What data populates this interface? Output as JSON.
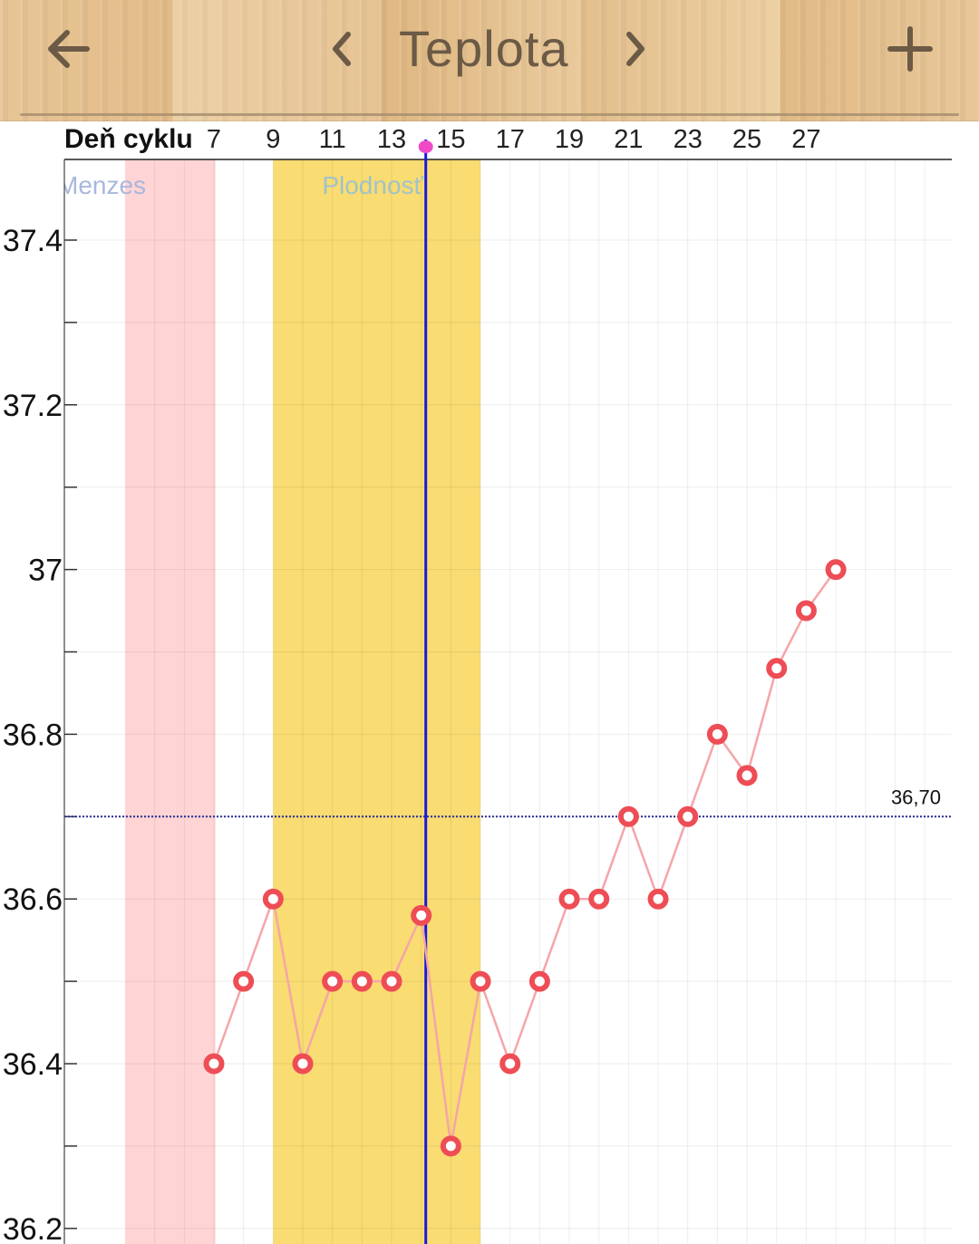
{
  "header": {
    "title": "Teplota",
    "back_icon": "arrow-left-icon",
    "prev_icon": "chevron-left-icon",
    "next_icon": "chevron-right-icon",
    "add_icon": "plus-icon",
    "icon_color": "#6b5a45"
  },
  "chart_data": {
    "type": "line",
    "xlabel": "Deň cyklu",
    "x_ticks": [
      7,
      9,
      11,
      13,
      15,
      17,
      19,
      21,
      23,
      25,
      27
    ],
    "y_ticks": [
      {
        "value": 37.4,
        "label": "37.4"
      },
      {
        "value": 37.2,
        "label": "37.2"
      },
      {
        "value": 37.0,
        "label": "37"
      },
      {
        "value": 36.8,
        "label": "36.8"
      },
      {
        "value": 36.6,
        "label": "36.6"
      },
      {
        "value": 36.4,
        "label": "36.4"
      },
      {
        "value": 36.2,
        "label": "36.2"
      }
    ],
    "ylim": [
      36.2,
      37.5
    ],
    "xlim": [
      4,
      34
    ],
    "bands": [
      {
        "label": "Menzes",
        "from": 4.0,
        "to": 7.05,
        "color": "#ffd4d4",
        "label_color": "#a9b7dd"
      },
      {
        "label": "Plodnosť",
        "from": 9.0,
        "to": 16.0,
        "color": "#f9dc72",
        "label_color": "#9fc3c8"
      }
    ],
    "ovulation_day": 14,
    "ovulation_line_color": "#1a1adb",
    "ovulation_marker_color": "#f049c8",
    "coverline": {
      "value": 36.7,
      "label": "36,70",
      "color": "#2a2a99"
    },
    "series": [
      {
        "color": "#ee4d55",
        "line_color": "#f5a5a8",
        "points": [
          {
            "x": 7,
            "y": 36.4
          },
          {
            "x": 8,
            "y": 36.5
          },
          {
            "x": 9,
            "y": 36.6
          },
          {
            "x": 10,
            "y": 36.4
          },
          {
            "x": 11,
            "y": 36.5
          },
          {
            "x": 12,
            "y": 36.5
          },
          {
            "x": 13,
            "y": 36.5
          },
          {
            "x": 14,
            "y": 36.58
          },
          {
            "x": 15,
            "y": 36.3
          },
          {
            "x": 16,
            "y": 36.5
          },
          {
            "x": 17,
            "y": 36.4
          },
          {
            "x": 18,
            "y": 36.5
          },
          {
            "x": 19,
            "y": 36.6
          },
          {
            "x": 20,
            "y": 36.6
          },
          {
            "x": 21,
            "y": 36.7
          },
          {
            "x": 22,
            "y": 36.6
          },
          {
            "x": 23,
            "y": 36.7
          },
          {
            "x": 24,
            "y": 36.8
          },
          {
            "x": 25,
            "y": 36.75
          },
          {
            "x": 26,
            "y": 36.88
          },
          {
            "x": 27,
            "y": 36.95
          },
          {
            "x": 28,
            "y": 37.0
          }
        ]
      }
    ],
    "grid": true
  }
}
